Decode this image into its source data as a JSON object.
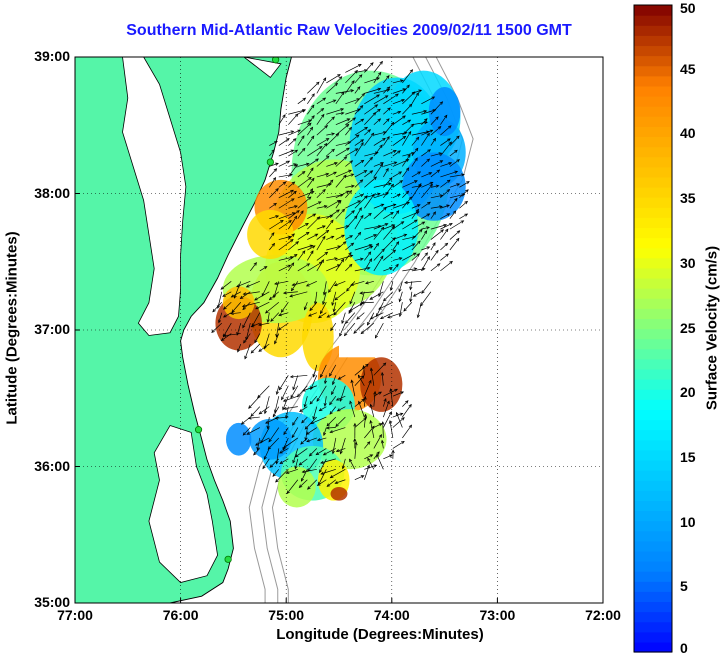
{
  "chart_data": {
    "type": "heatmap",
    "title": "Southern Mid-Atlantic Raw Velocities 2009/02/11 1500 GMT",
    "xlabel": "Longitude (Degrees:Minutes)",
    "ylabel": "Latitude (Degrees:Minutes)",
    "colorbar_label": "Surface Velocity (cm/s)",
    "xlim": [
      -77,
      -72
    ],
    "ylim": [
      35,
      39
    ],
    "clim": [
      0,
      50
    ],
    "x_ticks": [
      {
        "value": -77,
        "label": "77:00"
      },
      {
        "value": -76,
        "label": "76:00"
      },
      {
        "value": -75,
        "label": "75:00"
      },
      {
        "value": -74,
        "label": "74:00"
      },
      {
        "value": -73,
        "label": "73:00"
      },
      {
        "value": -72,
        "label": "72:00"
      }
    ],
    "y_ticks": [
      {
        "value": 39,
        "label": "39:00"
      },
      {
        "value": 38,
        "label": "38:00"
      },
      {
        "value": 37,
        "label": "37:00"
      },
      {
        "value": 36,
        "label": "36:00"
      },
      {
        "value": 35,
        "label": "35:00"
      }
    ],
    "colorbar_ticks": [
      0,
      5,
      10,
      15,
      20,
      25,
      30,
      35,
      40,
      45,
      50
    ],
    "grid": "dotted",
    "colors": {
      "land": "#55f5a8",
      "title": "#1a1aff",
      "bathymetry": "#9a9a9a"
    }
  }
}
